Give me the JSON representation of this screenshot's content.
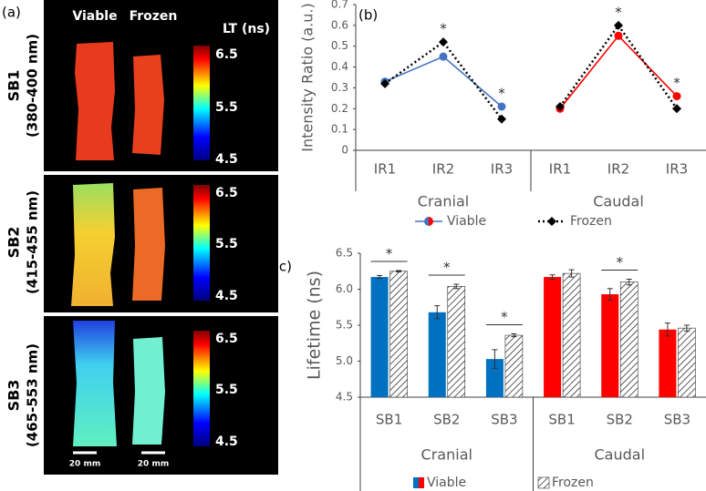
{
  "panel_a": {
    "label": "(a)",
    "columns": [
      "Viable",
      "Frozen"
    ],
    "colorbar_title": "LT (ns)",
    "colorbar_ticks": [
      6.5,
      5.5,
      4.5
    ],
    "rows": [
      {
        "name": "SB1",
        "range": "(380-400 nm)"
      },
      {
        "name": "SB2",
        "range": "(415-455 nm)"
      },
      {
        "name": "SB3",
        "range": "(465-553 nm)"
      }
    ],
    "scale_bar": "20 mm"
  },
  "chart_data": [
    {
      "type": "line",
      "panel_label": "(b)",
      "y_label": "Intensity Ratio (a.u.)",
      "categories": [
        "IR1",
        "IR2",
        "IR3",
        "IR1",
        "IR2",
        "IR3"
      ],
      "group_labels": [
        "Cranial",
        "Caudal"
      ],
      "series": [
        {
          "name": "Viable",
          "colors": [
            "#4472c4",
            "#ff0000"
          ],
          "marker": "circle",
          "dash": false,
          "values": [
            0.33,
            0.45,
            0.21,
            0.2,
            0.55,
            0.26
          ]
        },
        {
          "name": "Frozen",
          "color": "#000000",
          "marker": "diamond",
          "dash": true,
          "values": [
            0.32,
            0.52,
            0.15,
            0.21,
            0.6,
            0.2
          ]
        }
      ],
      "significance": [
        null,
        "*",
        "*",
        null,
        "*",
        "*"
      ],
      "ylim": [
        0,
        0.7
      ],
      "yticks": [
        0,
        0.1,
        0.2,
        0.3,
        0.4,
        0.5,
        0.6,
        0.7
      ],
      "grid": false
    },
    {
      "type": "bar",
      "panel_label": "(c)",
      "y_label": "Lifetime (ns)",
      "categories": [
        "SB1",
        "SB2",
        "SB3",
        "SB1",
        "SB2",
        "SB3"
      ],
      "group_labels": [
        "Cranial",
        "Caudal"
      ],
      "series": [
        {
          "name": "Viable",
          "colors": [
            "#0070c0",
            "#ff0000"
          ],
          "values": [
            6.17,
            5.68,
            5.03,
            6.17,
            5.93,
            5.44
          ],
          "errors": [
            0.02,
            0.09,
            0.13,
            0.03,
            0.08,
            0.09
          ]
        },
        {
          "name": "Frozen",
          "color": "#ffffff",
          "pattern": "hatch",
          "values": [
            6.25,
            6.04,
            5.36,
            6.22,
            6.1,
            5.46
          ],
          "errors": [
            0.01,
            0.03,
            0.02,
            0.05,
            0.04,
            0.04
          ]
        }
      ],
      "significance": [
        "*",
        "*",
        "*",
        null,
        "*",
        null
      ],
      "ylim": [
        4.5,
        6.5
      ],
      "yticks": [
        4.5,
        {
          "value": 5,
          "label": "5.0"
        },
        5.5,
        {
          "value": 6,
          "label": "6.0"
        },
        6.5
      ],
      "grid": false
    }
  ]
}
